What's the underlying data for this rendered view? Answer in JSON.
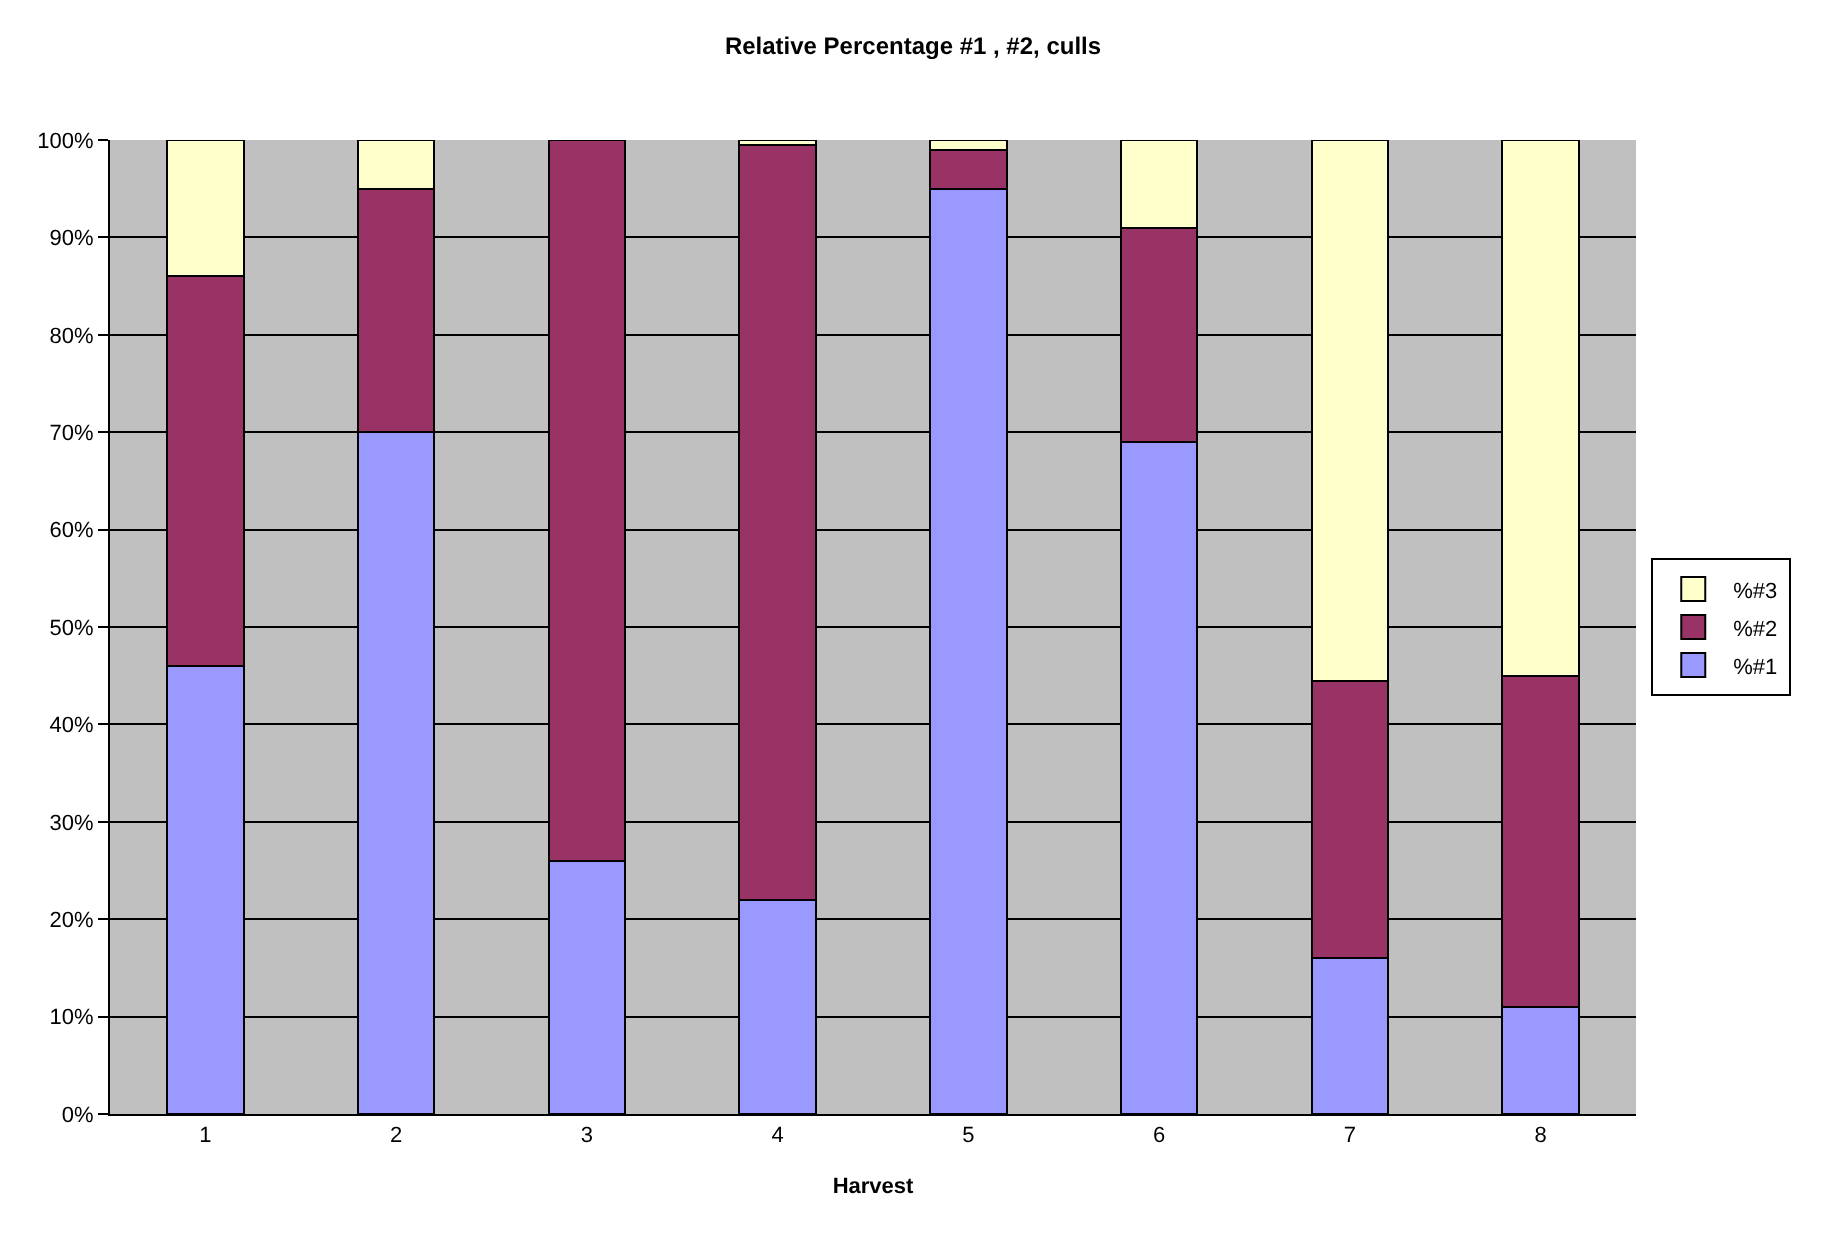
{
  "chart_data": {
    "type": "bar",
    "title": "Relative Percentage #1 , #2, culls",
    "xlabel": "Harvest",
    "categories": [
      "1",
      "2",
      "3",
      "4",
      "5",
      "6",
      "7",
      "8"
    ],
    "stacked": true,
    "series": [
      {
        "name": "%#1",
        "color": "#9999ff",
        "values": [
          46,
          70,
          26,
          22,
          95,
          69,
          16,
          11
        ]
      },
      {
        "name": "%#2",
        "color": "#993366",
        "values": [
          40,
          25,
          74,
          77.5,
          4,
          22,
          28.5,
          34
        ]
      },
      {
        "name": "%#3",
        "color": "#ffffcc",
        "values": [
          14,
          5,
          0,
          0.5,
          1,
          9,
          55.5,
          55
        ]
      }
    ],
    "ylim": [
      0,
      100
    ],
    "yticks": [
      {
        "value": 0,
        "label": "0%"
      },
      {
        "value": 10,
        "label": "10%"
      },
      {
        "value": 20,
        "label": "20%"
      },
      {
        "value": 30,
        "label": "30%"
      },
      {
        "value": 40,
        "label": "40%"
      },
      {
        "value": 50,
        "label": "50%"
      },
      {
        "value": 60,
        "label": "60%"
      },
      {
        "value": 70,
        "label": "70%"
      },
      {
        "value": 80,
        "label": "80%"
      },
      {
        "value": 90,
        "label": "90%"
      },
      {
        "value": 100,
        "label": "100%"
      }
    ],
    "grid": "y",
    "legend": "right"
  }
}
